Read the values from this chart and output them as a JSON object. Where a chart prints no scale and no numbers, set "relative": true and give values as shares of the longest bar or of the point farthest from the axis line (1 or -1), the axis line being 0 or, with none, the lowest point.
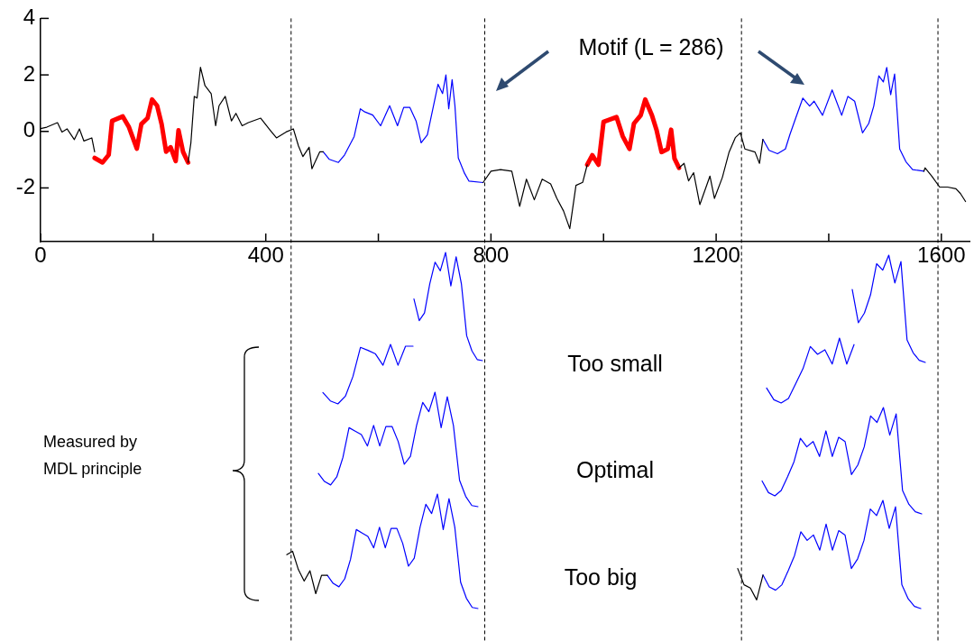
{
  "chart_data": [
    {
      "type": "line",
      "marker": "none",
      "xlim": [
        0,
        1650
      ],
      "ylim": [
        -3.9,
        4
      ],
      "xticks": [
        0,
        {
          "value": 200,
          "label": null
        },
        400,
        {
          "value": 600,
          "label": null
        },
        800,
        {
          "value": 1000,
          "label": null
        },
        1200,
        {
          "value": 1400,
          "label": null
        },
        1600
      ],
      "yticks": [
        4,
        2,
        0,
        -2
      ],
      "series": [
        {
          "color": "#000000",
          "x": [
            0,
            11,
            30,
            38,
            47,
            60,
            69,
            77,
            91,
            96,
            180,
            262,
            267,
            273,
            278,
            284,
            292,
            303,
            311,
            317,
            328,
            339,
            347,
            358,
            369,
            391,
            408,
            419,
            436,
            449,
            458,
            466,
            477,
            482,
            496,
            502,
            650,
            786,
            800,
            817,
            837,
            851,
            863,
            877,
            891,
            906,
            917,
            929,
            940,
            951,
            963,
            971,
            1050,
            1134,
            1143,
            1151,
            1160,
            1171,
            1189,
            1197,
            1211,
            1223,
            1234,
            1243,
            1251,
            1269,
            1277,
            1283,
            1420,
            1569,
            1571,
            1583,
            1597,
            1611,
            1626,
            1634,
            1643
          ],
          "values": [
            0.1,
            0.15,
            0.31,
            -0.02,
            0.09,
            -0.29,
            0.09,
            -0.34,
            -0.23,
            -0.72,
            null,
            -1.1,
            -0.4,
            1.24,
            1.18,
            2.27,
            1.62,
            1.34,
            0.2,
            0.91,
            1.24,
            0.37,
            0.64,
            0.2,
            0.31,
            0.47,
            0.04,
            -0.23,
            -0.02,
            0.09,
            -0.51,
            -0.89,
            -0.56,
            -1.32,
            -0.72,
            -0.72,
            null,
            -1.81,
            -1.41,
            -1.35,
            -1.41,
            -2.65,
            -1.69,
            -2.42,
            -1.69,
            -1.86,
            -2.37,
            -2.82,
            -3.44,
            -1.91,
            -1.8,
            -1.18,
            null,
            -1.29,
            -1.13,
            -1.75,
            -1.46,
            -2.59,
            -1.58,
            -2.37,
            -1.63,
            -0.73,
            -0.22,
            -0.05,
            -0.62,
            -0.73,
            -1.13,
            -0.28,
            null,
            -1.41,
            -1.29,
            -1.58,
            -1.97,
            -1.97,
            -2.03,
            -2.2,
            -2.48
          ]
        },
        {
          "color": "#ff0000",
          "x": [
            96,
            110,
            121,
            127,
            146,
            157,
            171,
            179,
            190,
            198,
            207,
            215,
            223,
            231,
            240,
            245,
            253,
            262,
            600,
            971,
            980,
            991,
            1000,
            1023,
            1034,
            1046,
            1054,
            1066,
            1074,
            1086,
            1094,
            1103,
            1114,
            1120,
            1126,
            1134
          ],
          "values": [
            -0.94,
            -1.1,
            -0.83,
            0.37,
            0.53,
            0.15,
            -0.61,
            0.26,
            0.47,
            1.13,
            0.91,
            0.26,
            -0.72,
            -0.56,
            -1.05,
            0.04,
            -0.72,
            -1.1,
            null,
            -1.18,
            -0.84,
            -1.18,
            0.34,
            0.51,
            -0.17,
            -0.62,
            0.28,
            0.57,
            1.13,
            0.57,
            0.06,
            -0.73,
            -0.62,
            0.06,
            -0.96,
            -1.29
          ]
        },
        {
          "color": "#0000ff",
          "x": [
            502,
            513,
            529,
            540,
            557,
            568,
            576,
            590,
            604,
            620,
            634,
            645,
            656,
            667,
            676,
            687,
            698,
            706,
            714,
            720,
            725,
            731,
            736,
            742,
            753,
            761,
            786,
            1000,
            1283,
            1294,
            1309,
            1323,
            1331,
            1340,
            1354,
            1366,
            1374,
            1389,
            1406,
            1423,
            1434,
            1446,
            1460,
            1471,
            1480,
            1489,
            1497,
            1503,
            1510,
            1517,
            1526,
            1537,
            1549,
            1569
          ],
          "values": [
            -0.72,
            -0.99,
            -1.1,
            -0.83,
            -0.18,
            0.8,
            0.69,
            0.58,
            0.2,
            0.91,
            0.2,
            0.85,
            0.85,
            0.37,
            -0.4,
            -0.12,
            0.91,
            1.67,
            1.34,
            2.0,
            0.8,
            1.83,
            0.91,
            -0.94,
            -1.48,
            -1.76,
            -1.81,
            null,
            -0.28,
            -0.67,
            -0.79,
            -0.62,
            -0.11,
            0.4,
            1.18,
            0.9,
            1.07,
            0.57,
            1.47,
            0.57,
            1.24,
            1.07,
            -0.05,
            0.28,
            0.9,
            1.97,
            1.75,
            2.26,
            1.3,
            2.03,
            -0.62,
            -1.07,
            -1.35,
            -1.41
          ]
        }
      ],
      "ref_lines": [
        {
          "axis": "x",
          "value": 445,
          "line_style": "dashed",
          "color": "#000000"
        },
        {
          "axis": "x",
          "value": 789,
          "line_style": "dashed",
          "color": "#000000"
        },
        {
          "axis": "x",
          "value": 1245,
          "line_style": "dashed",
          "color": "#000000"
        },
        {
          "axis": "x",
          "value": 1594,
          "line_style": "dashed",
          "color": "#000000"
        }
      ],
      "annotations": [
        "Motif (L = 286)"
      ]
    },
    {
      "type": "line",
      "relative": true,
      "marker": "none",
      "tick_labels": false,
      "categories": [
        null,
        null,
        null,
        null,
        null,
        null,
        null,
        null,
        null,
        null,
        null,
        null,
        null
      ],
      "series": [
        {
          "color": "#0000ff",
          "values": [
            0.19,
            0.05,
            0,
            0.13,
            0.46,
            0.95,
            0.9,
            0.84,
            0.65,
            1,
            0.65,
            0.97,
            0.97
          ]
        }
      ]
    },
    {
      "type": "line",
      "relative": true,
      "marker": "none",
      "tick_labels": false,
      "categories": [
        null,
        null,
        null,
        null,
        null,
        null,
        null,
        null,
        null,
        null,
        null,
        null,
        null,
        null
      ],
      "series": [
        {
          "color": "#0000ff",
          "values": [
            0.57,
            0.37,
            0.44,
            0.71,
            0.91,
            0.83,
            1,
            0.69,
            0.96,
            0.71,
            0.23,
            0.09,
            0.01,
            0
          ]
        }
      ]
    },
    {
      "type": "line",
      "relative": true,
      "marker": "none",
      "tick_labels": false,
      "categories": [
        null,
        null,
        null,
        null,
        null,
        null,
        null,
        null,
        null,
        null,
        null,
        null,
        null
      ],
      "series": [
        {
          "color": "#0000ff",
          "values": [
            0.23,
            0.05,
            0,
            0.07,
            0.3,
            0.53,
            0.87,
            0.75,
            0.82,
            0.6,
            1,
            0.6,
            0.9
          ]
        }
      ],
      "annotations": [
        "Too small"
      ]
    },
    {
      "type": "line",
      "relative": true,
      "marker": "none",
      "tick_labels": false,
      "categories": [
        null,
        null,
        null,
        null,
        null,
        null,
        null,
        null,
        null,
        null,
        null,
        null,
        null
      ],
      "series": [
        {
          "color": "#0000ff",
          "values": [
            0.68,
            0.37,
            0.46,
            0.63,
            0.92,
            0.86,
            1,
            0.74,
            0.94,
            0.21,
            0.09,
            0.02,
            0
          ]
        }
      ]
    },
    {
      "type": "line",
      "relative": true,
      "marker": "none",
      "tick_labels": false,
      "categories": [
        null,
        null,
        null,
        null,
        null,
        null,
        null,
        null,
        null,
        null,
        null,
        null,
        null,
        null,
        null,
        null,
        null,
        null,
        null,
        null,
        null,
        null,
        null,
        null,
        null,
        null,
        null
      ],
      "series": [
        {
          "color": "#0000ff",
          "values": [
            0.29,
            0.22,
            0.19,
            0.26,
            0.43,
            0.69,
            0.66,
            0.63,
            0.53,
            0.71,
            0.53,
            0.7,
            0.7,
            0.57,
            0.37,
            0.44,
            0.71,
            0.91,
            0.83,
            1,
            0.69,
            0.96,
            0.71,
            0.23,
            0.09,
            0.01,
            0
          ]
        }
      ],
      "annotations": [
        "Optimal",
        "Measured by MDL principle"
      ]
    },
    {
      "type": "line",
      "relative": true,
      "marker": "none",
      "tick_labels": false,
      "categories": [
        null,
        null,
        null,
        null,
        null,
        null,
        null,
        null,
        null,
        null,
        null,
        null,
        null,
        null,
        null,
        null,
        null,
        null,
        null,
        null,
        null,
        null,
        null,
        null,
        null,
        null
      ],
      "series": [
        {
          "color": "#0000ff",
          "values": [
            0.31,
            0.2,
            0.17,
            0.22,
            0.35,
            0.49,
            0.71,
            0.63,
            0.68,
            0.54,
            0.78,
            0.54,
            0.72,
            0.68,
            0.37,
            0.46,
            0.63,
            0.92,
            0.86,
            1,
            0.74,
            0.94,
            0.22,
            0.09,
            0.02,
            0
          ]
        }
      ]
    },
    {
      "type": "line",
      "relative": true,
      "marker": "none",
      "tick_labels": false,
      "categories": [
        null,
        null,
        null,
        null,
        null,
        null,
        null,
        null,
        null,
        null,
        null,
        null,
        null,
        null,
        null,
        null,
        null,
        null,
        null,
        null,
        null,
        null,
        null,
        null,
        null,
        null,
        null,
        null,
        null,
        null,
        null,
        null,
        null,
        null
      ],
      "series": [
        {
          "color": "#000000",
          "values": [
            0.47,
            0.5,
            0.34,
            0.24,
            0.33,
            0.13,
            0.29,
            0.29,
            null,
            null,
            null,
            null,
            null,
            null,
            null,
            null,
            null,
            null,
            null,
            null,
            null,
            null,
            null,
            null,
            null,
            null,
            null,
            null,
            null,
            null,
            null,
            null,
            null,
            null
          ]
        },
        {
          "color": "#0000ff",
          "values": [
            null,
            null,
            null,
            null,
            null,
            null,
            null,
            0.29,
            0.22,
            0.19,
            0.26,
            0.43,
            0.69,
            0.66,
            0.63,
            0.53,
            0.71,
            0.53,
            0.7,
            0.7,
            0.57,
            0.37,
            0.44,
            0.71,
            0.91,
            0.83,
            1,
            0.69,
            0.96,
            0.71,
            0.23,
            0.09,
            0.01,
            0
          ]
        }
      ]
    },
    {
      "type": "line",
      "relative": true,
      "marker": "none",
      "tick_labels": false,
      "categories": [
        null,
        null,
        null,
        null,
        null,
        null,
        null,
        null,
        null,
        null,
        null,
        null,
        null,
        null,
        null,
        null,
        null,
        null,
        null,
        null,
        null,
        null,
        null,
        null,
        null,
        null,
        null,
        null,
        null,
        null
      ],
      "series": [
        {
          "color": "#000000",
          "values": [
            0.37,
            0.22,
            0.19,
            0.08,
            0.31,
            null,
            null,
            null,
            null,
            null,
            null,
            null,
            null,
            null,
            null,
            null,
            null,
            null,
            null,
            null,
            null,
            null,
            null,
            null,
            null,
            null,
            null,
            null,
            null,
            null
          ]
        },
        {
          "color": "#0000ff",
          "values": [
            null,
            null,
            null,
            null,
            0.31,
            0.2,
            0.17,
            0.22,
            0.35,
            0.49,
            0.71,
            0.63,
            0.68,
            0.54,
            0.78,
            0.54,
            0.72,
            0.68,
            0.37,
            0.46,
            0.63,
            0.92,
            0.86,
            1,
            0.74,
            0.94,
            0.22,
            0.09,
            0.02,
            0
          ]
        }
      ],
      "annotations": [
        "Too big"
      ]
    }
  ]
}
